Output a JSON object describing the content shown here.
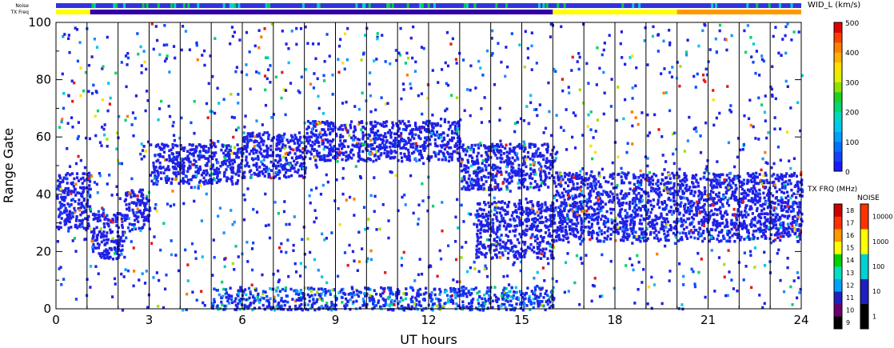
{
  "chart_data": {
    "type": "heatmap",
    "xlabel": "UT hours",
    "ylabel": "Range Gate",
    "xlim": [
      0,
      24
    ],
    "ylim": [
      0,
      100
    ],
    "x_ticks": [
      "0",
      "3",
      "6",
      "9",
      "12",
      "15",
      "18",
      "21",
      "24"
    ],
    "y_ticks": [
      "0",
      "20",
      "40",
      "60",
      "80",
      "100"
    ],
    "hour_lines": [
      1,
      2,
      3,
      4,
      5,
      6,
      7,
      8,
      9,
      10,
      11,
      12,
      13,
      14,
      15,
      16,
      17,
      18,
      19,
      20,
      21,
      22,
      23
    ],
    "top_bars": [
      {
        "label": "Noise",
        "segments": [
          {
            "from": 0,
            "to": 24,
            "color": "#3333dd"
          }
        ]
      },
      {
        "label": "TX Freq",
        "segments": [
          {
            "from": 0,
            "to": 1.1,
            "color": "#ffff00"
          },
          {
            "from": 1.1,
            "to": 16,
            "color": "#3300aa"
          },
          {
            "from": 16,
            "to": 20,
            "color": "#ffff00"
          },
          {
            "from": 20,
            "to": 24,
            "color": "#ff9900"
          }
        ]
      }
    ],
    "width_scale": {
      "title": "WID_L (km/s)",
      "ticks": [
        "0",
        "100",
        "200",
        "300",
        "400",
        "500"
      ],
      "min": 0,
      "max": 500
    },
    "freq_scale": {
      "title": "TX FRQ (MHz)",
      "labels": [
        "9",
        "10",
        "11",
        "12",
        "13",
        "14",
        "15",
        "16",
        "17",
        "18"
      ],
      "colors": [
        "#000000",
        "#6a006a",
        "#2020c0",
        "#00a0ff",
        "#00e0c0",
        "#00d000",
        "#ffff00",
        "#ff9900",
        "#ff3300",
        "#cc0000"
      ]
    },
    "noise_scale": {
      "title": "NOISE",
      "labels": [
        "1",
        "10",
        "100",
        "1000",
        "10000"
      ],
      "colors": [
        "#000000",
        "#2020c0",
        "#00d0d0",
        "#ffff00",
        "#ff3300"
      ]
    },
    "echo_bands": [
      {
        "x": [
          0,
          1.1
        ],
        "y": [
          28,
          48
        ]
      },
      {
        "x": [
          1.1,
          2.2
        ],
        "y": [
          18,
          34
        ]
      },
      {
        "x": [
          2.2,
          3.0
        ],
        "y": [
          28,
          42
        ]
      },
      {
        "x": [
          3.0,
          6.0
        ],
        "y": [
          44,
          58
        ]
      },
      {
        "x": [
          6.0,
          8.0
        ],
        "y": [
          46,
          62
        ]
      },
      {
        "x": [
          8.0,
          13.0
        ],
        "y": [
          52,
          66
        ]
      },
      {
        "x": [
          13.0,
          16.0
        ],
        "y": [
          42,
          58
        ]
      },
      {
        "x": [
          13.5,
          16.0
        ],
        "y": [
          18,
          38
        ]
      },
      {
        "x": [
          16.0,
          24.0
        ],
        "y": [
          24,
          48
        ]
      }
    ]
  }
}
